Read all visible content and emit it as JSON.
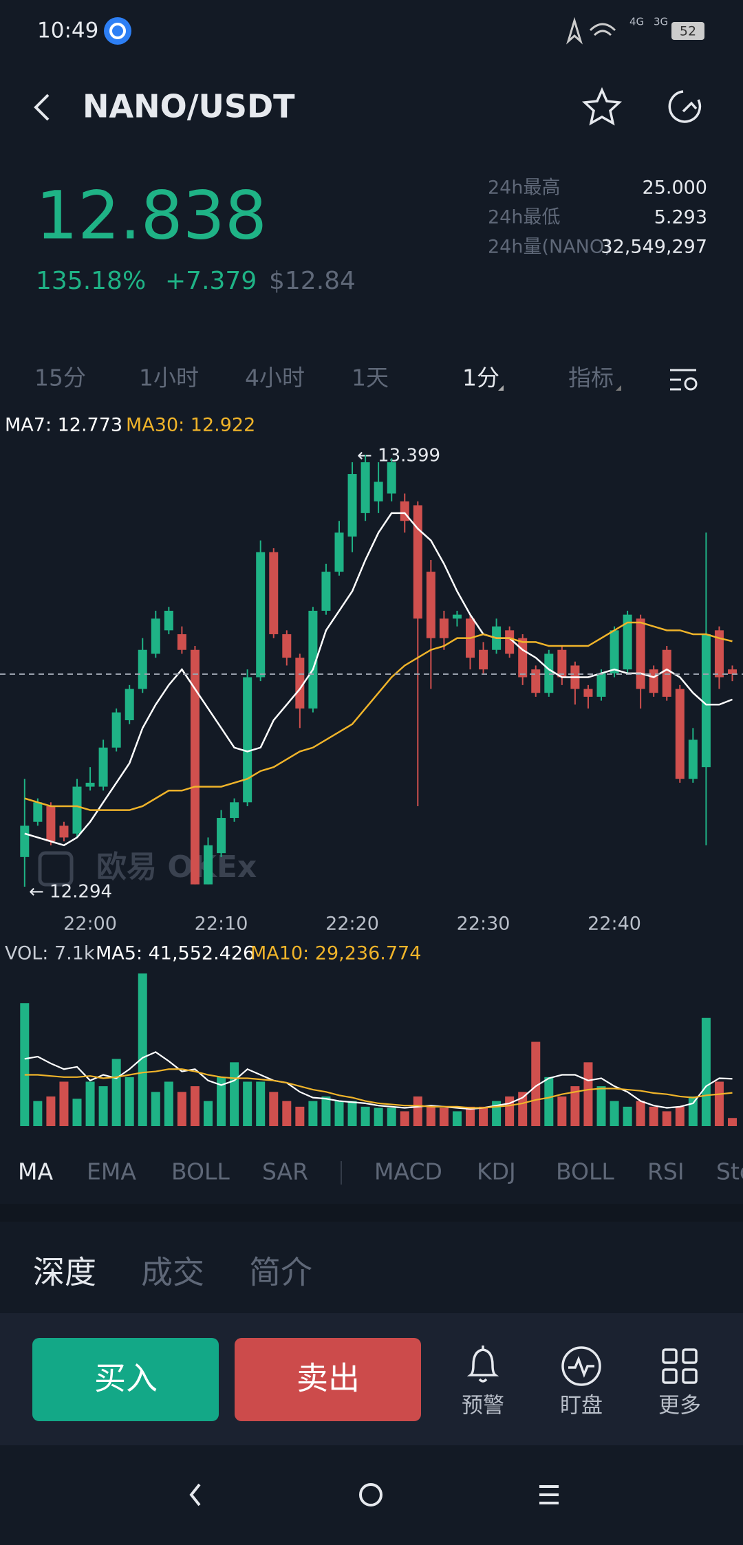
{
  "status_bar": {
    "time": "10:49",
    "network_1": "4G",
    "network_2": "3G",
    "battery": "52"
  },
  "header": {
    "title": "NANO/USDT"
  },
  "ticker": {
    "price": "12.838",
    "change_percent": "135.18%",
    "change": "+7.379",
    "usd_price": "$12.84",
    "stats": [
      {
        "label": "24h最高",
        "value": "25.000"
      },
      {
        "label": "24h最低",
        "value": "5.293"
      },
      {
        "label": "24h量(NANO)",
        "value": "32,549,297"
      }
    ]
  },
  "interval_tabs": [
    "15分",
    "1小时",
    "4小时",
    "1天",
    "1分",
    "指标"
  ],
  "chart_data": [
    {
      "type": "candlestick",
      "legend": [
        "MA7: 12.773",
        "MA30: 12.922"
      ],
      "categories": [
        null,
        null,
        null,
        null,
        null,
        "22:00",
        null,
        null,
        null,
        null,
        null,
        null,
        null,
        null,
        null,
        "22:10",
        null,
        null,
        null,
        null,
        null,
        null,
        null,
        null,
        null,
        "22:20",
        null,
        null,
        null,
        null,
        null,
        null,
        null,
        null,
        null,
        "22:30",
        null,
        null,
        null,
        null,
        null,
        null,
        null,
        null,
        null,
        "22:40",
        null,
        null,
        null,
        null,
        null,
        null,
        null,
        null,
        null
      ],
      "open": [
        12.37,
        12.46,
        12.5,
        12.45,
        12.43,
        12.55,
        12.55,
        12.65,
        12.72,
        12.8,
        12.89,
        12.95,
        12.94,
        12.9,
        12.3,
        12.38,
        12.47,
        12.51,
        12.83,
        13.15,
        12.94,
        12.88,
        12.75,
        13.0,
        13.1,
        13.19,
        13.25,
        13.28,
        13.3,
        13.28,
        13.27,
        13.1,
        12.98,
        12.98,
        12.98,
        12.9,
        12.9,
        12.95,
        12.93,
        12.85,
        12.79,
        12.9,
        12.86,
        12.8,
        12.78,
        12.84,
        12.85,
        12.98,
        12.85,
        12.9,
        12.8,
        12.57,
        12.6,
        12.95,
        12.85
      ],
      "high": [
        12.57,
        12.52,
        12.51,
        12.46,
        12.57,
        12.6,
        12.67,
        12.75,
        12.81,
        12.93,
        13.0,
        13.01,
        12.96,
        12.91,
        12.42,
        12.49,
        12.52,
        12.85,
        13.18,
        13.16,
        12.95,
        12.89,
        13.01,
        13.12,
        13.23,
        13.38,
        13.399,
        13.38,
        13.39,
        13.3,
        13.28,
        13.13,
        13.0,
        13.0,
        12.99,
        12.92,
        12.98,
        12.96,
        12.94,
        12.86,
        12.9,
        12.91,
        12.87,
        12.81,
        12.85,
        12.96,
        13.0,
        12.99,
        12.86,
        12.91,
        12.81,
        12.7,
        13.2,
        12.96,
        12.86
      ],
      "low": [
        12.294,
        12.45,
        12.4,
        12.41,
        12.42,
        12.54,
        12.54,
        12.64,
        12.71,
        12.79,
        12.88,
        12.94,
        12.89,
        12.3,
        12.3,
        12.37,
        12.46,
        12.5,
        12.82,
        12.93,
        12.86,
        12.7,
        12.74,
        12.99,
        13.09,
        13.15,
        13.23,
        13.25,
        13.28,
        13.2,
        12.5,
        12.8,
        12.9,
        12.96,
        12.85,
        12.84,
        12.89,
        12.88,
        12.81,
        12.78,
        12.78,
        12.81,
        12.76,
        12.75,
        12.77,
        12.83,
        12.84,
        12.75,
        12.78,
        12.77,
        12.56,
        12.56,
        12.4,
        12.8,
        12.82
      ],
      "close": [
        12.45,
        12.51,
        12.41,
        12.42,
        12.55,
        12.56,
        12.65,
        12.74,
        12.8,
        12.9,
        12.98,
        13.0,
        12.9,
        12.3,
        12.4,
        12.47,
        12.51,
        12.83,
        13.15,
        12.94,
        12.88,
        12.75,
        13.0,
        13.1,
        13.2,
        13.35,
        13.38,
        13.33,
        13.38,
        13.23,
        12.98,
        12.93,
        12.93,
        12.99,
        12.88,
        12.85,
        12.96,
        12.89,
        12.83,
        12.79,
        12.89,
        12.83,
        12.8,
        12.78,
        12.84,
        12.95,
        12.99,
        12.8,
        12.79,
        12.78,
        12.57,
        12.67,
        12.94,
        12.83,
        12.838
      ],
      "up_color": "#1fb386",
      "down_color": "#d0504e",
      "lines": [
        {
          "color": "#ffffff",
          "values": [
            12.43,
            12.42,
            12.41,
            12.4,
            12.42,
            12.46,
            12.51,
            12.56,
            12.61,
            12.7,
            12.76,
            12.81,
            12.85,
            12.8,
            12.75,
            12.7,
            12.65,
            12.64,
            12.65,
            12.72,
            12.76,
            12.8,
            12.85,
            12.95,
            13.0,
            13.05,
            13.13,
            13.2,
            13.25,
            13.25,
            13.21,
            13.18,
            13.12,
            13.05,
            12.99,
            12.94,
            12.93,
            12.93,
            12.9,
            12.88,
            12.85,
            12.83,
            12.83,
            12.83,
            12.84,
            12.85,
            12.84,
            12.84,
            12.83,
            12.85,
            12.83,
            12.79,
            12.76,
            12.76,
            12.773
          ]
        },
        {
          "color": "#f0b42a",
          "values": [
            12.52,
            12.51,
            12.5,
            12.5,
            12.5,
            12.49,
            12.49,
            12.49,
            12.49,
            12.5,
            12.52,
            12.54,
            12.54,
            12.55,
            12.55,
            12.55,
            12.56,
            12.57,
            12.59,
            12.6,
            12.62,
            12.64,
            12.65,
            12.67,
            12.69,
            12.71,
            12.75,
            12.79,
            12.83,
            12.86,
            12.88,
            12.9,
            12.91,
            12.93,
            12.93,
            12.94,
            12.93,
            12.93,
            12.92,
            12.92,
            12.91,
            12.91,
            12.91,
            12.91,
            12.93,
            12.95,
            12.97,
            12.97,
            12.96,
            12.95,
            12.95,
            12.94,
            12.94,
            12.93,
            12.922
          ]
        }
      ],
      "ylim": [
        12.243,
        13.505
      ],
      "current_price": 12.838,
      "annotations": [
        {
          "text": "← 13.399"
        },
        {
          "text": "← 12.294"
        }
      ],
      "watermark": "欧易 OKEx"
    },
    {
      "type": "bar",
      "legend": [
        "VOL: 7.1k",
        "MA5: 41,552.426",
        "MA10: 29,236.774"
      ],
      "values": [
        108000,
        22000,
        26000,
        39000,
        24000,
        39000,
        35000,
        59000,
        43000,
        134000,
        30000,
        39000,
        30000,
        35000,
        22000,
        43000,
        56000,
        39000,
        39000,
        30000,
        22000,
        17000,
        22000,
        26000,
        22000,
        22000,
        17000,
        16000,
        16000,
        13000,
        26000,
        17000,
        16000,
        13000,
        17000,
        17000,
        22000,
        26000,
        30000,
        74000,
        43000,
        26000,
        35000,
        56000,
        35000,
        22000,
        17000,
        22000,
        17000,
        13000,
        17000,
        26000,
        95000,
        39000,
        7100
      ],
      "ylim": [
        0,
        145000
      ],
      "lines": [
        {
          "color": "#ffffff",
          "values": [
            59000,
            61000,
            55000,
            50000,
            52000,
            40000,
            45000,
            42000,
            50000,
            60000,
            65000,
            57000,
            48000,
            50000,
            40000,
            36000,
            40000,
            50000,
            45000,
            40000,
            38000,
            30000,
            25000,
            24000,
            22000,
            21000,
            20000,
            18000,
            17000,
            16000,
            17000,
            18000,
            17000,
            16000,
            15000,
            16000,
            18000,
            20000,
            25000,
            35000,
            42000,
            45000,
            45000,
            40000,
            42000,
            35000,
            30000,
            22000,
            18000,
            16000,
            17000,
            20000,
            35000,
            42000,
            41552.426
          ]
        },
        {
          "color": "#f0b42a",
          "values": [
            45000,
            45000,
            44000,
            43000,
            43000,
            44000,
            42000,
            43000,
            45000,
            47000,
            48000,
            50000,
            50000,
            48000,
            45000,
            43000,
            42000,
            42000,
            41000,
            40000,
            38000,
            35000,
            32000,
            30000,
            27000,
            25000,
            22000,
            20000,
            19000,
            18000,
            18000,
            17000,
            17000,
            17000,
            16000,
            16000,
            17000,
            18000,
            20000,
            23000,
            25000,
            28000,
            30000,
            32000,
            33000,
            33000,
            32000,
            31000,
            29000,
            28000,
            26000,
            25000,
            27000,
            28000,
            29236.774
          ]
        }
      ]
    }
  ],
  "indicator_tabs": [
    "MA",
    "EMA",
    "BOLL",
    "SAR",
    "MACD",
    "KDJ",
    "BOLL",
    "RSI",
    "Sto"
  ],
  "section_tabs": [
    "深度",
    "成交",
    "简介"
  ],
  "actions": {
    "buy": "买入",
    "sell": "卖出",
    "tools": [
      "预警",
      "盯盘",
      "更多"
    ]
  }
}
